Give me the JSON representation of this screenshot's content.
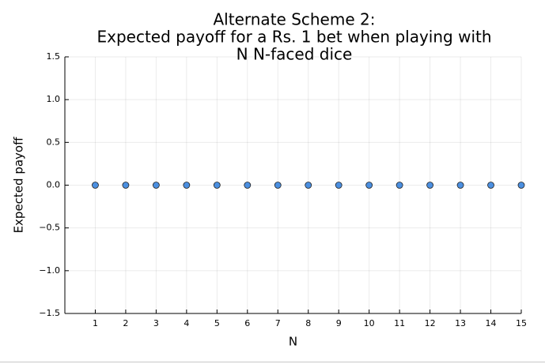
{
  "chart_data": {
    "type": "scatter",
    "title": [
      "Alternate Scheme 2:",
      "Expected payoff for a Rs. 1 bet when playing with",
      "N N-faced dice"
    ],
    "x_label": "N",
    "y_label": "Expected payoff",
    "x": [
      1,
      2,
      3,
      4,
      5,
      6,
      7,
      8,
      9,
      10,
      11,
      12,
      13,
      14,
      15
    ],
    "values": [
      0,
      0,
      0,
      0,
      0,
      0,
      0,
      0,
      0,
      0,
      0,
      0,
      0,
      0,
      0
    ],
    "color": "#4b8fe0",
    "xlim": [
      0,
      15
    ],
    "xticks": [
      1,
      2,
      3,
      4,
      5,
      6,
      7,
      8,
      9,
      10,
      11,
      12,
      13,
      14,
      15
    ],
    "ylim": [
      -1.5,
      1.5
    ],
    "yticks": [
      {
        "value": -1.5,
        "label": "−1.5"
      },
      {
        "value": -1,
        "label": "−1.0"
      },
      {
        "value": -0.5,
        "label": "−0.5"
      },
      {
        "value": 0,
        "label": "0.0"
      },
      0.5,
      {
        "value": 1,
        "label": "1.0"
      },
      1.5
    ],
    "grid": true
  }
}
